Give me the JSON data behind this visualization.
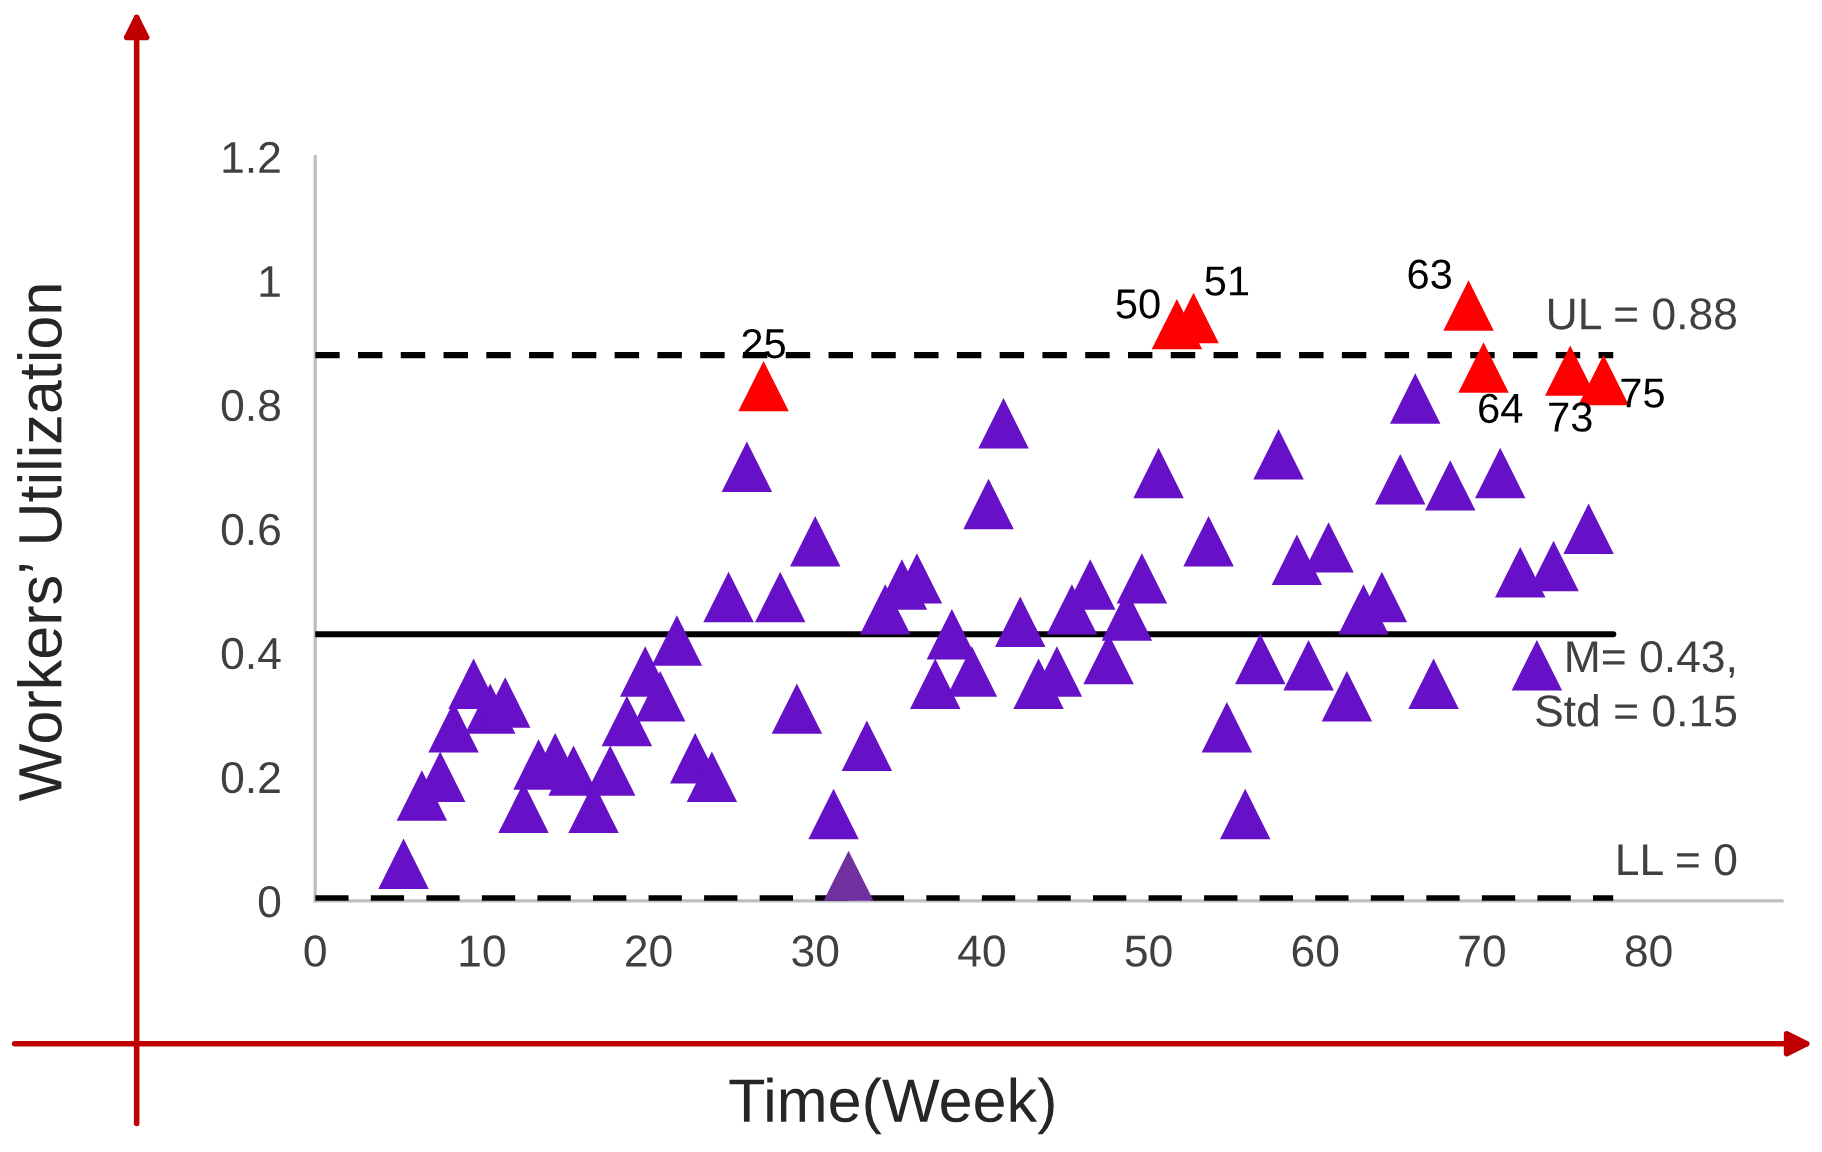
{
  "chart_data": {
    "type": "scatter",
    "xlabel": "Time(Week)",
    "ylabel": "Workers’ Utilization",
    "xlim": [
      0,
      88
    ],
    "ylim": [
      0,
      1.2
    ],
    "xticks": [
      0,
      10,
      20,
      30,
      40,
      50,
      60,
      70,
      80
    ],
    "yticks": [
      0,
      0.2,
      0.4,
      0.6,
      {
        "value": 0.8,
        "label": "0.8"
      },
      1,
      1.2
    ],
    "marker": "triangle",
    "grid": false,
    "legend": false,
    "series": [
      {
        "color": "#6610c8",
        "x": [
          5.3,
          6.4,
          7.5,
          8.3,
          9.5,
          10.5,
          11.4,
          12.5,
          13.4,
          14.4,
          15.5,
          16.7,
          17.7,
          18.7,
          19.8,
          20.7,
          21.7,
          22.8,
          23.8,
          24.8,
          25.9,
          27.9,
          28.9,
          30,
          31.1,
          32.0,
          33.1,
          34.2,
          35.2,
          36.1,
          37.2,
          38.2,
          39.4,
          40.4,
          41.3,
          42.3,
          43.4,
          44.5,
          45.4,
          46.5,
          47.6,
          48.7,
          49.6,
          50.6,
          53.6,
          54.7,
          55.8,
          56.7,
          57.8,
          58.9,
          59.6,
          60.8,
          61.9,
          62.9,
          64,
          65.1,
          66,
          67.1,
          68.1,
          71.1,
          72.3,
          73.3,
          74.3,
          76.4
        ],
        "values": [
          0.06,
          0.17,
          0.2,
          0.28,
          0.35,
          0.31,
          0.32,
          0.15,
          0.22,
          0.23,
          0.21,
          0.15,
          0.21,
          0.29,
          0.37,
          0.33,
          0.42,
          0.23,
          0.2,
          0.49,
          0.7,
          0.49,
          0.31,
          0.58,
          0.14,
          0.04,
          0.25,
          0.47,
          0.51,
          0.52,
          0.35,
          0.43,
          0.37,
          0.64,
          0.77,
          0.45,
          0.35,
          0.37,
          0.47,
          0.51,
          0.39,
          0.46,
          0.52,
          0.69,
          0.58,
          0.28,
          0.14,
          0.39,
          0.72,
          0.55,
          0.38,
          0.57,
          0.33,
          0.47,
          0.49,
          0.68,
          0.81,
          0.35,
          0.67,
          0.69,
          0.53,
          0.38,
          0.54,
          0.6
        ],
        "colors": [
          null,
          null,
          null,
          null,
          null,
          null,
          null,
          null,
          null,
          null,
          null,
          null,
          null,
          null,
          null,
          null,
          null,
          null,
          null,
          null,
          null,
          null,
          null,
          null,
          null,
          "#7030a0",
          "#6610c8",
          "#6610c8",
          "#6610c8",
          "#6610c8",
          "#6610c8",
          "#6610c8",
          "#6610c8",
          "#6610c8",
          "#6610c8",
          "#6610c8",
          "#6610c8",
          "#6610c8",
          "#6610c8",
          "#6610c8",
          "#6610c8",
          "#6610c8",
          "#6610c8",
          "#6610c8",
          "#6610c8",
          "#6610c8",
          "#6610c8",
          "#6610c8",
          "#6610c8",
          "#6610c8",
          "#6610c8",
          "#6610c8",
          "#6610c8",
          "#6610c8",
          "#6610c8",
          "#6610c8",
          "#6610c8",
          "#6610c8",
          "#6610c8",
          "#6610c8",
          "#6610c8",
          "#6610c8",
          "#6610c8",
          "#6610c8"
        ]
      },
      {
        "color": "#ff0000",
        "x": [
          26.9,
          51.7,
          52.7,
          69.2,
          70.1,
          75.3,
          77.3
        ],
        "values": [
          0.83,
          0.93,
          0.94,
          0.96,
          0.86,
          0.855,
          0.84
        ]
      }
    ],
    "ref_lines": [
      {
        "axis": "y",
        "value": 0.88,
        "label": "UL = 0.88",
        "color": "#000000",
        "line_style": "dashed"
      },
      {
        "axis": "y",
        "value": 0.43,
        "label": "M= 0.43,\nStd = 0.15",
        "color": "#000000",
        "line_style": "solid"
      },
      {
        "axis": "y",
        "value": 0,
        "label": "LL = 0",
        "color": "#000000",
        "line_style": "dashed"
      }
    ],
    "annotations": [
      {
        "text": "25",
        "x": 26.9,
        "y": 0.83
      },
      {
        "text": "50",
        "x": 51.7,
        "y": 0.93
      },
      {
        "text": "51",
        "x": 52.7,
        "y": 0.94
      },
      {
        "text": "63",
        "x": 69.2,
        "y": 0.96
      },
      {
        "text": "64",
        "x": 70.1,
        "y": 0.86
      },
      {
        "text": "73",
        "x": 75.3,
        "y": 0.855
      },
      {
        "text": "75",
        "x": 77.3,
        "y": 0.84
      }
    ]
  }
}
